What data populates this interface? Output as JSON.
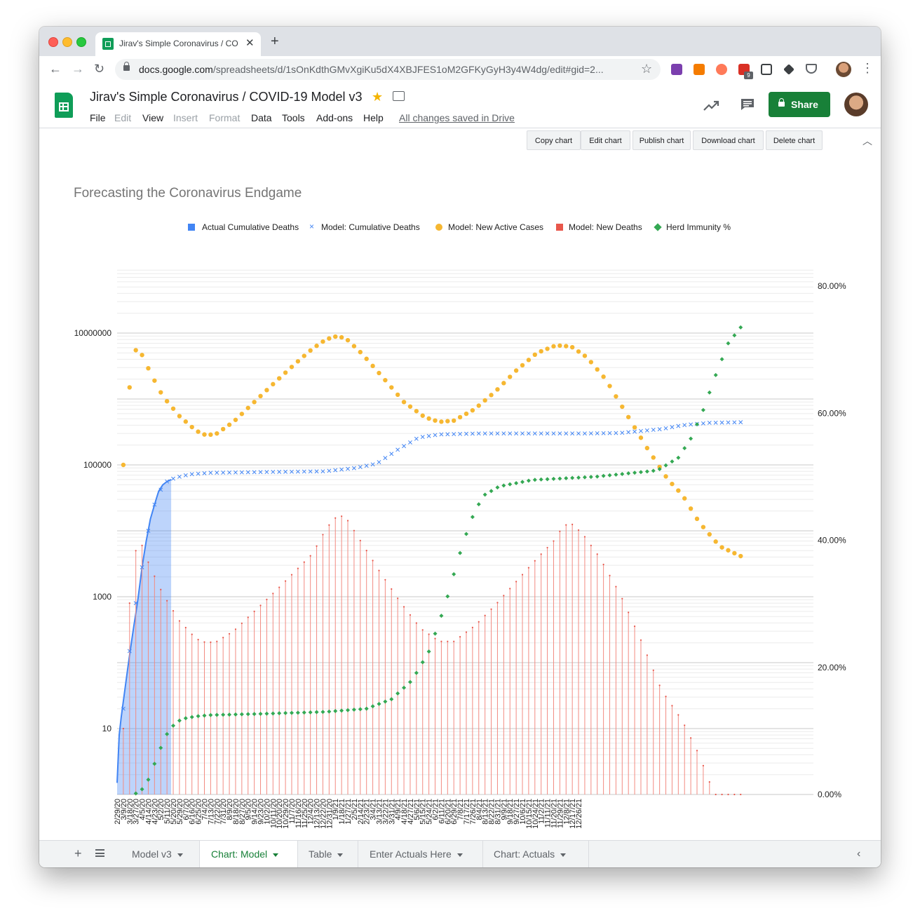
{
  "browser": {
    "tab_title": "Jirav's Simple Coronavirus / CO",
    "url_host": "docs.google.com",
    "url_rest": "/spreadsheets/d/1sOnKdthGMvXgiKu5dX4XBJFES1oM2GFKyGyH3y4W4dg/edit#gid=2...",
    "extension_badge": "9"
  },
  "doc": {
    "title": "Jirav's Simple Coronavirus / COVID-19 Model v3",
    "menus": [
      "File",
      "Edit",
      "View",
      "Insert",
      "Format",
      "Data",
      "Tools",
      "Add-ons",
      "Help"
    ],
    "saved_status": "All changes saved in Drive",
    "share_label": "Share"
  },
  "chart_toolbar": [
    "Copy chart",
    "Edit chart",
    "Publish chart",
    "Download chart",
    "Delete chart"
  ],
  "sheet_tabs": [
    {
      "label": "Model v3",
      "active": false
    },
    {
      "label": "Chart: Model",
      "active": true
    },
    {
      "label": "Table",
      "active": false
    },
    {
      "label": "Enter Actuals Here",
      "active": false
    },
    {
      "label": "Chart: Actuals",
      "active": false
    }
  ],
  "colors": {
    "actual": "#4285f4",
    "model_deaths": "#4285f4",
    "active_cases": "#f6b731",
    "new_deaths": "#e8574b",
    "herd": "#34a853"
  },
  "chart_data": {
    "type": "line",
    "title": "Forecasting the Coronavirus Endgame",
    "legend": [
      "Actual Cumulative Deaths",
      "Model: Cumulative Deaths",
      "Model: New Active Cases",
      "Model: New Deaths",
      "Herd Immunity %"
    ],
    "legend_position": "top",
    "left_axis": {
      "scale": "log",
      "ticks": [
        "10",
        "1000",
        "100000",
        "10000000"
      ],
      "range": [
        1,
        100000000
      ]
    },
    "right_axis": {
      "ticks": [
        "0.00%",
        "20.00%",
        "40.00%",
        "60.00%",
        "80.00%"
      ],
      "range": [
        0,
        80
      ]
    },
    "x_labels": [
      "2/29/20",
      "3/9/20",
      "3/18/20",
      "3/27/20",
      "4/5/20",
      "4/14/20",
      "4/23/20",
      "5/2/20",
      "5/11/20",
      "5/20/20",
      "5/29/20",
      "6/7/20",
      "6/16/20",
      "6/25/20",
      "7/4/20",
      "7/13/20",
      "7/22/20",
      "7/31/20",
      "8/9/20",
      "8/18/20",
      "8/27/20",
      "9/5/20",
      "9/14/20",
      "9/23/20",
      "10/2/20",
      "10/11/20",
      "10/20/20",
      "10/29/20",
      "11/7/20",
      "11/16/20",
      "11/25/20",
      "12/4/20",
      "12/13/20",
      "12/22/20",
      "12/31/20",
      "1/9/21",
      "1/18/21",
      "1/27/21",
      "2/5/21",
      "2/14/21",
      "2/23/21",
      "3/4/21",
      "3/13/21",
      "3/22/21",
      "3/31/21",
      "4/9/21",
      "4/18/21",
      "4/27/21",
      "5/6/21",
      "5/15/21",
      "5/24/21",
      "6/2/21",
      "6/11/21",
      "6/20/21",
      "6/29/21",
      "7/8/21",
      "7/17/21",
      "7/26/21",
      "8/4/21",
      "8/13/21",
      "8/22/21",
      "8/31/21",
      "9/9/21",
      "9/18/21",
      "9/27/21",
      "10/6/21",
      "10/15/21",
      "10/24/21",
      "11/2/21",
      "11/11/21",
      "11/20/21",
      "11/29/21",
      "12/8/21",
      "12/17/21",
      "12/26/21"
    ],
    "step_days": 3,
    "actual_cumulative_deaths_kink": [
      [
        0,
        1.5
      ],
      [
        1,
        8
      ],
      [
        2,
        15
      ],
      [
        4,
        45
      ],
      [
        6,
        130
      ],
      [
        8,
        350
      ],
      [
        10,
        900
      ],
      [
        12,
        2800
      ],
      [
        14,
        7000
      ],
      [
        16,
        15000
      ],
      [
        18,
        25000
      ],
      [
        20,
        40000
      ],
      [
        22,
        50000
      ],
      [
        24,
        56000
      ],
      [
        26,
        60000
      ]
    ],
    "actual_last_index": 26,
    "cumulative_deaths_kink": [
      [
        0,
        2
      ],
      [
        3,
        20
      ],
      [
        6,
        150
      ],
      [
        9,
        800
      ],
      [
        12,
        2800
      ],
      [
        15,
        10000
      ],
      [
        18,
        25000
      ],
      [
        21,
        42000
      ],
      [
        24,
        56000
      ],
      [
        28,
        64000
      ],
      [
        35,
        72000
      ],
      [
        45,
        76000
      ],
      [
        70,
        78000
      ],
      [
        100,
        80000
      ],
      [
        115,
        90000
      ],
      [
        125,
        105000
      ],
      [
        135,
        170000
      ],
      [
        145,
        260000
      ],
      [
        155,
        290000
      ],
      [
        175,
        300000
      ],
      [
        225,
        300000
      ],
      [
        242,
        305000
      ],
      [
        262,
        350000
      ],
      [
        272,
        400000
      ],
      [
        285,
        435000
      ],
      [
        301,
        445000
      ]
    ],
    "active_cases_kink": [
      [
        3,
        100000
      ],
      [
        4,
        250000
      ],
      [
        5,
        600000
      ],
      [
        6,
        1500000
      ],
      [
        7,
        3200000
      ],
      [
        8,
        4500000
      ],
      [
        9,
        5500000
      ],
      [
        10,
        5800000
      ],
      [
        11,
        5400000
      ],
      [
        13,
        4000000
      ],
      [
        16,
        2500000
      ],
      [
        22,
        1100000
      ],
      [
        30,
        550000
      ],
      [
        38,
        330000
      ],
      [
        43,
        280000
      ],
      [
        48,
        300000
      ],
      [
        56,
        450000
      ],
      [
        66,
        900000
      ],
      [
        76,
        1800000
      ],
      [
        86,
        3500000
      ],
      [
        94,
        5800000
      ],
      [
        100,
        7800000
      ],
      [
        104,
        8800000
      ],
      [
        107,
        8900000
      ],
      [
        111,
        7800000
      ],
      [
        118,
        4800000
      ],
      [
        128,
        2100000
      ],
      [
        138,
        900000
      ],
      [
        148,
        530000
      ],
      [
        155,
        450000
      ],
      [
        162,
        470000
      ],
      [
        172,
        700000
      ],
      [
        182,
        1300000
      ],
      [
        192,
        2700000
      ],
      [
        202,
        5000000
      ],
      [
        210,
        6300000
      ],
      [
        214,
        6500000
      ],
      [
        219,
        6100000
      ],
      [
        226,
        4300000
      ],
      [
        235,
        2000000
      ],
      [
        245,
        600000
      ],
      [
        255,
        180000
      ],
      [
        265,
        60000
      ],
      [
        272,
        35000
      ],
      [
        280,
        13500
      ],
      [
        290,
        5800
      ],
      [
        301,
        4000
      ]
    ],
    "new_deaths_kink": [
      [
        3,
        10
      ],
      [
        4,
        50
      ],
      [
        5,
        250
      ],
      [
        6,
        800
      ],
      [
        7,
        2000
      ],
      [
        8,
        3500
      ],
      [
        9,
        5000
      ],
      [
        10,
        6000
      ],
      [
        11,
        6500
      ],
      [
        12,
        6000
      ],
      [
        13,
        5500
      ],
      [
        14,
        4000
      ],
      [
        16,
        2800
      ],
      [
        22,
        1100
      ],
      [
        30,
        430
      ],
      [
        38,
        230
      ],
      [
        43,
        200
      ],
      [
        48,
        210
      ],
      [
        56,
        300
      ],
      [
        66,
        600
      ],
      [
        76,
        1200
      ],
      [
        86,
        2500
      ],
      [
        94,
        4500
      ],
      [
        100,
        10000
      ],
      [
        104,
        15000
      ],
      [
        107,
        17000
      ],
      [
        110,
        16000
      ],
      [
        116,
        8000
      ],
      [
        126,
        2500
      ],
      [
        136,
        850
      ],
      [
        146,
        330
      ],
      [
        155,
        210
      ],
      [
        162,
        210
      ],
      [
        172,
        360
      ],
      [
        182,
        750
      ],
      [
        192,
        1700
      ],
      [
        202,
        3800
      ],
      [
        210,
        7000
      ],
      [
        214,
        11000
      ],
      [
        217,
        13000
      ],
      [
        219,
        12500
      ],
      [
        224,
        9000
      ],
      [
        232,
        4000
      ],
      [
        242,
        1100
      ],
      [
        252,
        220
      ],
      [
        262,
        38
      ],
      [
        272,
        13
      ],
      [
        280,
        4
      ],
      [
        290,
        0.6
      ],
      [
        301,
        0.25
      ]
    ],
    "herd_immunity_kink": [
      [
        8,
        0
      ],
      [
        11,
        0.5
      ],
      [
        14,
        1.5
      ],
      [
        17,
        4
      ],
      [
        20,
        6.5
      ],
      [
        23,
        9
      ],
      [
        26,
        10.5
      ],
      [
        29,
        11.5
      ],
      [
        33,
        12
      ],
      [
        38,
        12.3
      ],
      [
        45,
        12.5
      ],
      [
        70,
        12.7
      ],
      [
        100,
        13
      ],
      [
        120,
        13.5
      ],
      [
        132,
        15
      ],
      [
        142,
        18
      ],
      [
        150,
        22.5
      ],
      [
        158,
        30
      ],
      [
        164,
        37
      ],
      [
        170,
        43
      ],
      [
        176,
        47
      ],
      [
        184,
        48.5
      ],
      [
        200,
        49.5
      ],
      [
        230,
        50
      ],
      [
        260,
        51
      ],
      [
        270,
        53
      ],
      [
        276,
        56
      ],
      [
        282,
        60.5
      ],
      [
        288,
        66
      ],
      [
        294,
        71
      ],
      [
        300,
        73.5
      ],
      [
        310,
        74.5
      ],
      [
        320,
        74.8
      ],
      [
        335,
        74.8
      ]
    ]
  }
}
